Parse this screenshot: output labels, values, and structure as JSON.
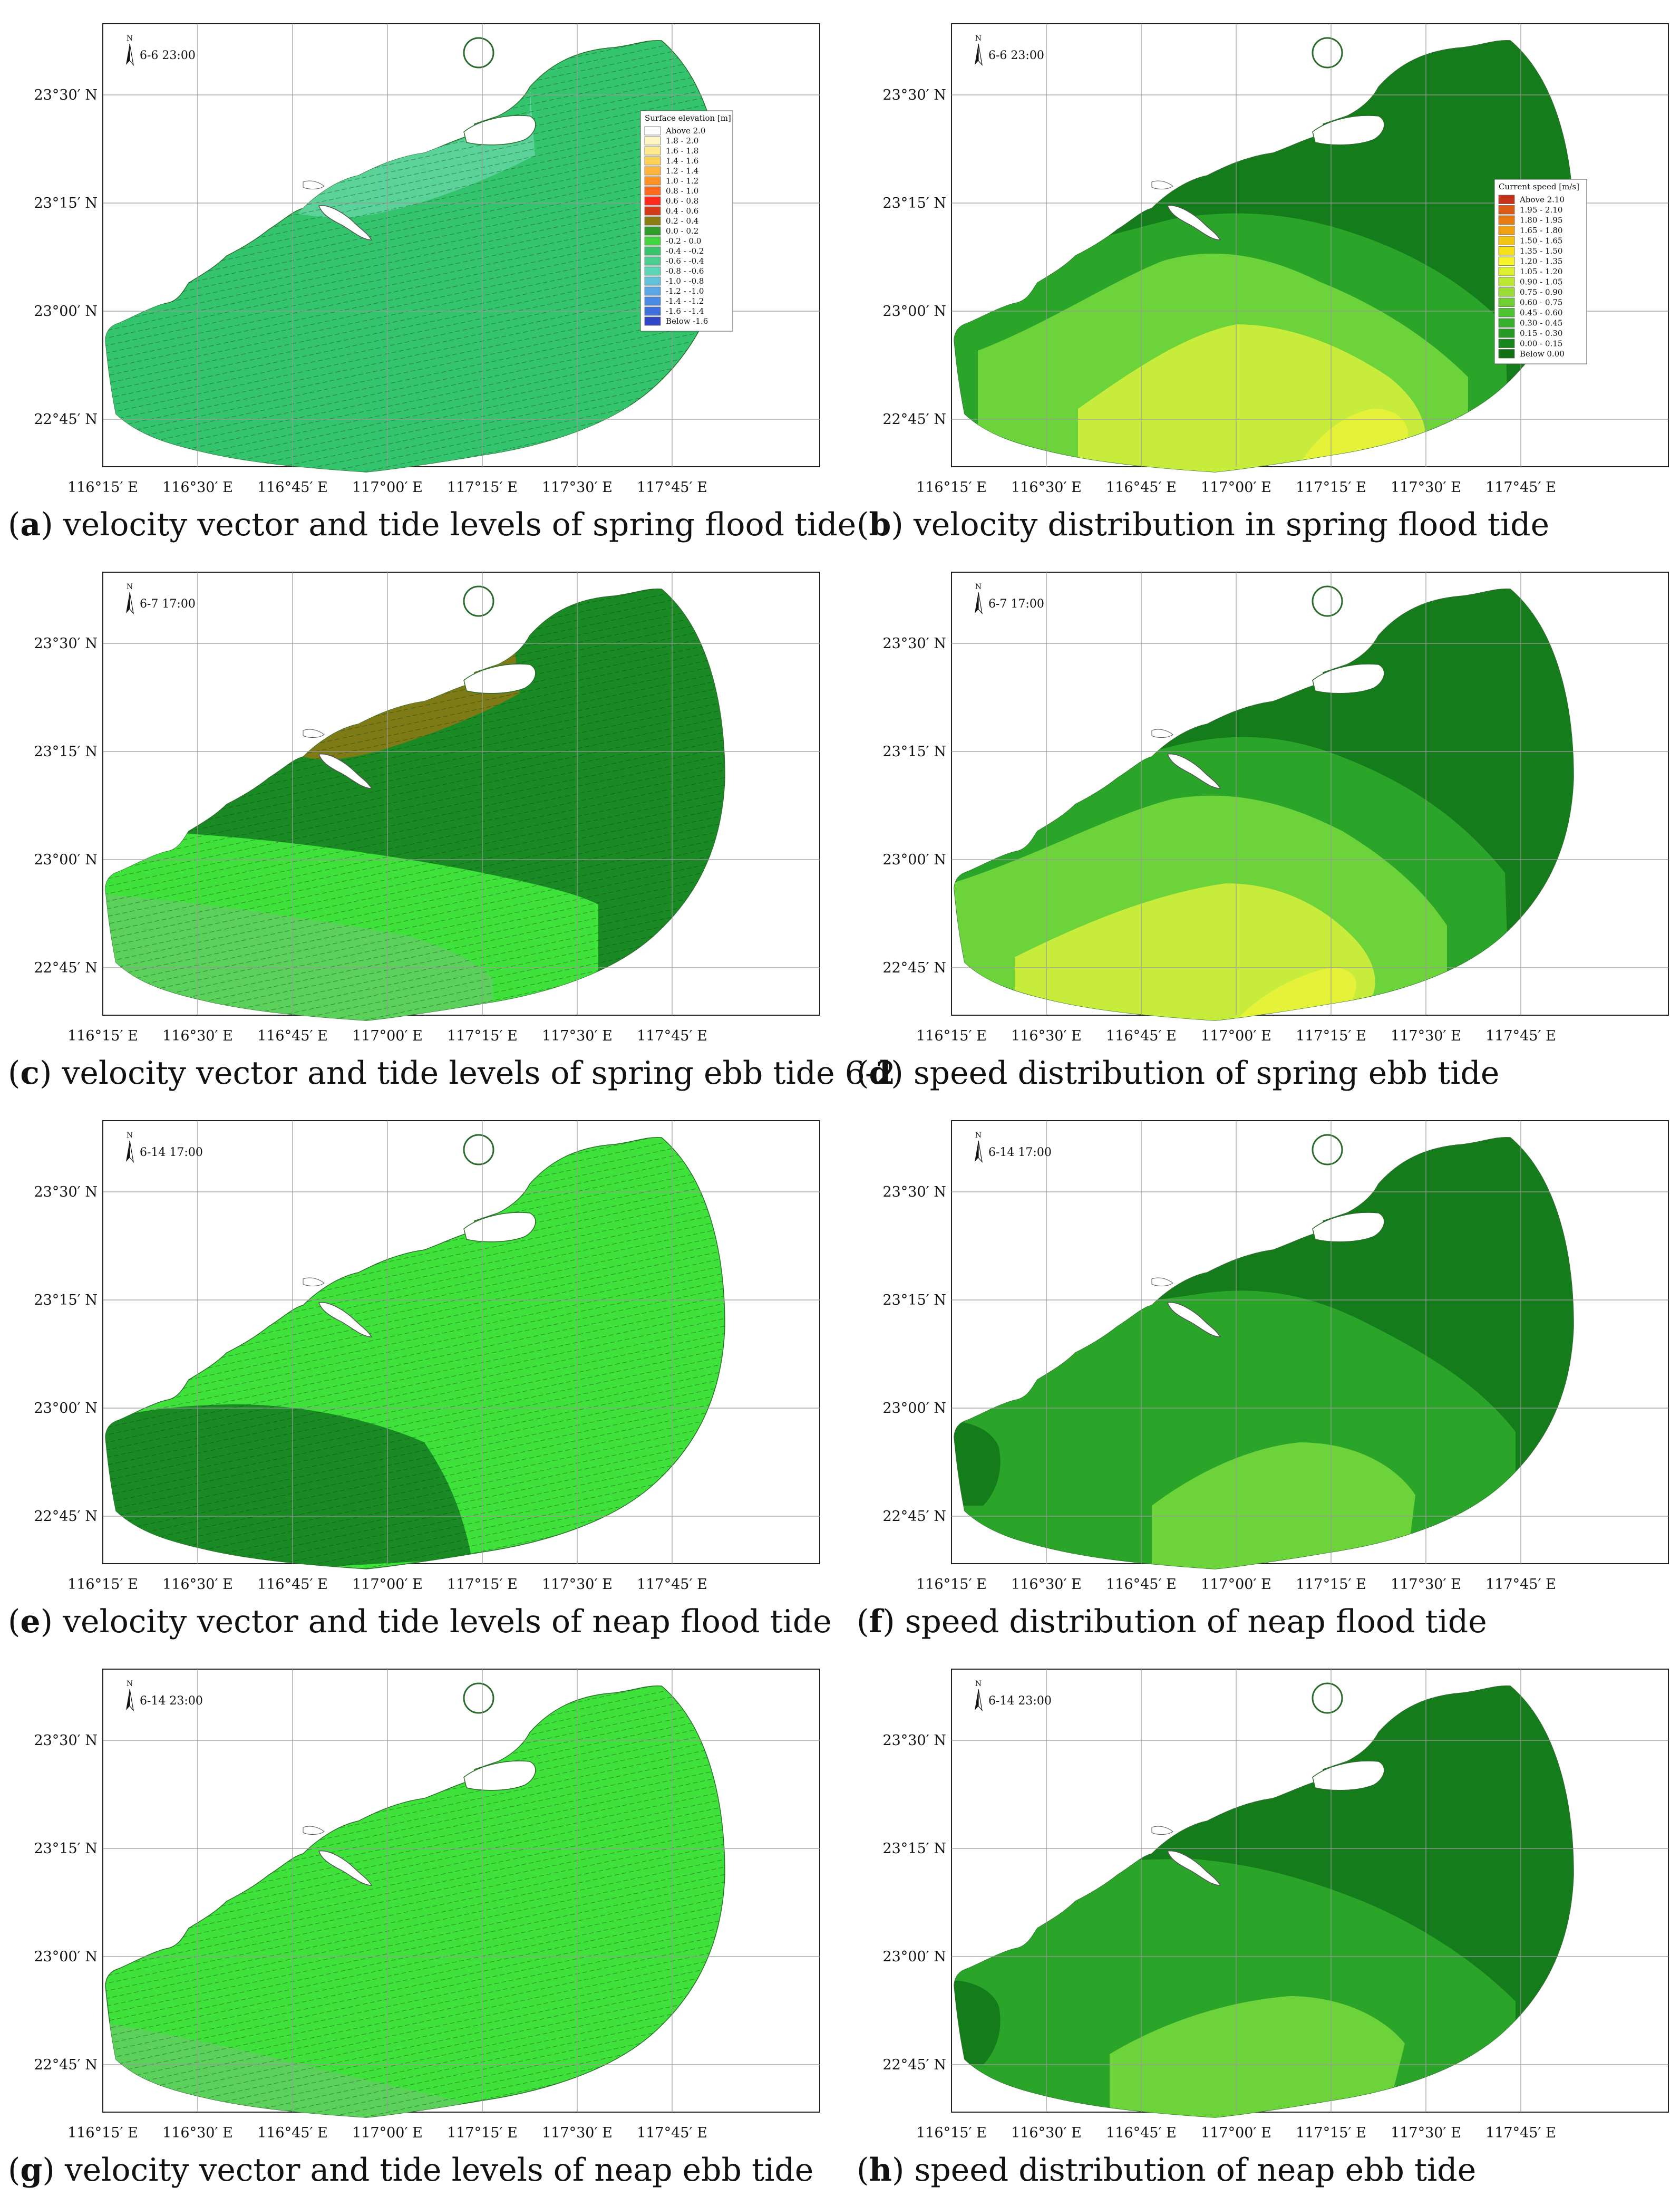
{
  "axes": {
    "x_ticks": [
      "116°15′ E",
      "116°30′ E",
      "116°45′ E",
      "117°00′ E",
      "117°15′ E",
      "117°30′ E",
      "117°45′ E"
    ],
    "y_ticks": [
      "23°30′ N",
      "23°15′ N",
      "23°00′ N",
      "22°45′ N"
    ],
    "north": "N"
  },
  "colors": {
    "elev_green": "#2ca836",
    "elev_teal": "#35c46e",
    "elev_cyan": "#5ad29a",
    "elev_lightblue": "#64aee8",
    "elev_blue": "#3a63d6",
    "elev_olive": "#7e7a16",
    "elev_red": "#e03b12",
    "elev_dark": "#198a24",
    "elev_bright": "#3fe23a",
    "elev_light": "#5bd15b",
    "speed_dark": "#147c1a",
    "speed_mid": "#2aa52a",
    "speed_light": "#6cd33a",
    "speed_yellow": "#c8ec3c",
    "speed_yelloww": "#e6f23a"
  },
  "panels": [
    {
      "letter": "a",
      "caption": " velocity vector and tide levels of spring flood tide",
      "timestamp": "6-6 23:00",
      "legend": "elevation"
    },
    {
      "letter": "b",
      "caption": " velocity distribution in spring flood tide",
      "timestamp": "6-6 23:00",
      "legend": "speed"
    },
    {
      "letter": "c",
      "caption": " velocity vector and tide levels of spring ebb tide 6-2",
      "timestamp": "6-7 17:00",
      "legend": "none"
    },
    {
      "letter": "d",
      "caption": " speed distribution of spring ebb tide",
      "timestamp": "6-7 17:00",
      "legend": "none"
    },
    {
      "letter": "e",
      "caption": " velocity vector and tide levels of neap flood tide",
      "timestamp": "6-14 17:00",
      "legend": "none"
    },
    {
      "letter": "f",
      "caption": " speed distribution of neap flood tide",
      "timestamp": "6-14 17:00",
      "legend": "none"
    },
    {
      "letter": "g",
      "caption": " velocity vector and tide levels of neap ebb tide",
      "timestamp": "6-14 23:00",
      "legend": "none"
    },
    {
      "letter": "h",
      "caption": " speed distribution of neap ebb tide",
      "timestamp": "6-14 23:00",
      "legend": "none"
    }
  ],
  "legend_elevation": {
    "title": "Surface elevation [m]",
    "entries": [
      {
        "label": "Above  2.0",
        "color": "#ffffff"
      },
      {
        "label": "1.8 -  2.0",
        "color": "#fff6c4"
      },
      {
        "label": "1.6 -  1.8",
        "color": "#ffe98c"
      },
      {
        "label": "1.4 -  1.6",
        "color": "#ffd35a"
      },
      {
        "label": "1.2 -  1.4",
        "color": "#ffb43c"
      },
      {
        "label": "1.0 -  1.2",
        "color": "#ff9326"
      },
      {
        "label": "0.8 -  1.0",
        "color": "#ff6a1e"
      },
      {
        "label": "0.6 -  0.8",
        "color": "#ff2a1a"
      },
      {
        "label": "0.4 -  0.6",
        "color": "#d43a14"
      },
      {
        "label": "0.2 -  0.4",
        "color": "#8a7d14"
      },
      {
        "label": "0.0 -  0.2",
        "color": "#2f9e2c"
      },
      {
        "label": "-0.2 -  0.0",
        "color": "#44d640"
      },
      {
        "label": "-0.4 - -0.2",
        "color": "#3ac46c"
      },
      {
        "label": "-0.6 - -0.4",
        "color": "#4ccf90"
      },
      {
        "label": "-0.8 - -0.6",
        "color": "#5cd6b4"
      },
      {
        "label": "-1.0 - -0.8",
        "color": "#62c2dc"
      },
      {
        "label": "-1.2 - -1.0",
        "color": "#5aa6e6"
      },
      {
        "label": "-1.4 - -1.2",
        "color": "#4a8ae4"
      },
      {
        "label": "-1.6 - -1.4",
        "color": "#3c6edc"
      },
      {
        "label": "Below  -1.6",
        "color": "#2f45c4"
      }
    ]
  },
  "legend_speed": {
    "title": "Current speed [m/s]",
    "entries": [
      {
        "label": "Above 2.10",
        "color": "#c8321a"
      },
      {
        "label": "1.95 - 2.10",
        "color": "#dc5a14"
      },
      {
        "label": "1.80 - 1.95",
        "color": "#e87c10"
      },
      {
        "label": "1.65 - 1.80",
        "color": "#f0a010"
      },
      {
        "label": "1.50 - 1.65",
        "color": "#f4c414"
      },
      {
        "label": "1.35 - 1.50",
        "color": "#f8e018"
      },
      {
        "label": "1.20 - 1.35",
        "color": "#f4f428"
      },
      {
        "label": "1.05 - 1.20",
        "color": "#dcf030"
      },
      {
        "label": "0.90 - 1.05",
        "color": "#bce834"
      },
      {
        "label": "0.75 - 0.90",
        "color": "#98dc34"
      },
      {
        "label": "0.60 - 0.75",
        "color": "#70d034"
      },
      {
        "label": "0.45 - 0.60",
        "color": "#4cc430"
      },
      {
        "label": "0.30 - 0.45",
        "color": "#34b02c"
      },
      {
        "label": "0.15 - 0.30",
        "color": "#249a24"
      },
      {
        "label": "0.00 - 0.15",
        "color": "#18861c"
      },
      {
        "label": "Below  0.00",
        "color": "#107014"
      }
    ]
  }
}
